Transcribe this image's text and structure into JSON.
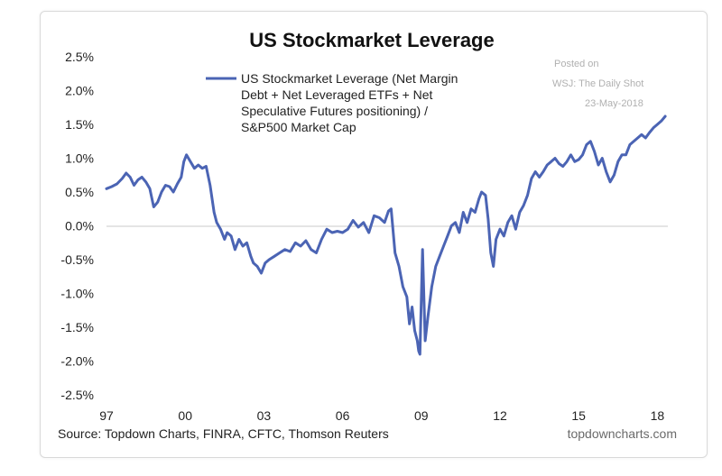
{
  "chart_data": {
    "type": "line",
    "title": "US Stockmarket Leverage",
    "xlabel": "",
    "ylabel": "",
    "x_tick_labels": [
      "97",
      "00",
      "03",
      "06",
      "09",
      "12",
      "15",
      "18"
    ],
    "y_tick_labels": [
      "2.5%",
      "2.0%",
      "1.5%",
      "1.0%",
      "0.5%",
      "0.0%",
      "-0.5%",
      "-1.0%",
      "-1.5%",
      "-2.0%",
      "-2.5%"
    ],
    "xlim": [
      1997.0,
      2018.4
    ],
    "ylim": [
      -2.5,
      2.5
    ],
    "grid": false,
    "legend_position": "top-center",
    "legend_lines": [
      "US Stockmarket Leverage (Net Margin",
      "Debt + Net Leveraged ETFs + Net",
      "Speculative Futures positioning) /",
      "S&P500 Market Cap"
    ],
    "series": [
      {
        "name": "US Stockmarket Leverage (Net Margin Debt + Net Leveraged ETFs + Net Speculative Futures positioning) / S&P500 Market Cap",
        "color": "#4b64b4",
        "x": [
          1997.0,
          1997.2,
          1997.4,
          1997.6,
          1997.75,
          1997.9,
          1998.05,
          1998.2,
          1998.35,
          1998.5,
          1998.65,
          1998.8,
          1998.95,
          1999.1,
          1999.25,
          1999.4,
          1999.55,
          1999.7,
          1999.85,
          1999.95,
          2000.05,
          2000.2,
          2000.35,
          2000.5,
          2000.65,
          2000.8,
          2000.95,
          2001.1,
          2001.2,
          2001.35,
          2001.5,
          2001.6,
          2001.75,
          2001.9,
          2002.05,
          2002.2,
          2002.35,
          2002.5,
          2002.6,
          2002.75,
          2002.9,
          2003.05,
          2003.2,
          2003.4,
          2003.6,
          2003.8,
          2004.0,
          2004.2,
          2004.4,
          2004.6,
          2004.8,
          2005.0,
          2005.2,
          2005.4,
          2005.6,
          2005.8,
          2006.0,
          2006.2,
          2006.4,
          2006.6,
          2006.8,
          2007.0,
          2007.2,
          2007.4,
          2007.6,
          2007.75,
          2007.85,
          2008.0,
          2008.15,
          2008.3,
          2008.45,
          2008.55,
          2008.65,
          2008.75,
          2008.85,
          2008.9,
          2008.95,
          2009.05,
          2009.15,
          2009.25,
          2009.4,
          2009.55,
          2009.7,
          2009.85,
          2010.0,
          2010.15,
          2010.3,
          2010.45,
          2010.6,
          2010.75,
          2010.9,
          2011.05,
          2011.2,
          2011.3,
          2011.45,
          2011.55,
          2011.65,
          2011.75,
          2011.85,
          2012.0,
          2012.15,
          2012.3,
          2012.45,
          2012.6,
          2012.75,
          2012.9,
          2013.05,
          2013.2,
          2013.35,
          2013.5,
          2013.65,
          2013.8,
          2013.95,
          2014.1,
          2014.25,
          2014.4,
          2014.55,
          2014.7,
          2014.85,
          2015.0,
          2015.15,
          2015.3,
          2015.45,
          2015.6,
          2015.75,
          2015.9,
          2016.05,
          2016.2,
          2016.35,
          2016.5,
          2016.65,
          2016.8,
          2016.95,
          2017.1,
          2017.25,
          2017.4,
          2017.55,
          2017.7,
          2017.85,
          2018.0,
          2018.15,
          2018.3
        ],
        "values": [
          0.55,
          0.58,
          0.62,
          0.7,
          0.78,
          0.72,
          0.6,
          0.68,
          0.72,
          0.65,
          0.55,
          0.28,
          0.35,
          0.5,
          0.6,
          0.58,
          0.5,
          0.62,
          0.72,
          0.95,
          1.05,
          0.95,
          0.85,
          0.9,
          0.85,
          0.88,
          0.6,
          0.2,
          0.05,
          -0.05,
          -0.2,
          -0.1,
          -0.15,
          -0.35,
          -0.2,
          -0.3,
          -0.25,
          -0.45,
          -0.55,
          -0.6,
          -0.7,
          -0.55,
          -0.5,
          -0.45,
          -0.4,
          -0.35,
          -0.38,
          -0.25,
          -0.3,
          -0.22,
          -0.35,
          -0.4,
          -0.2,
          -0.05,
          -0.1,
          -0.08,
          -0.1,
          -0.05,
          0.08,
          -0.02,
          0.05,
          -0.1,
          0.15,
          0.12,
          0.05,
          0.22,
          0.25,
          -0.4,
          -0.6,
          -0.9,
          -1.05,
          -1.45,
          -1.2,
          -1.55,
          -1.7,
          -1.85,
          -1.9,
          -0.35,
          -1.7,
          -1.35,
          -0.9,
          -0.6,
          -0.45,
          -0.3,
          -0.15,
          0.0,
          0.05,
          -0.1,
          0.2,
          0.05,
          0.25,
          0.2,
          0.4,
          0.5,
          0.45,
          0.1,
          -0.4,
          -0.6,
          -0.2,
          -0.05,
          -0.15,
          0.05,
          0.15,
          -0.05,
          0.2,
          0.3,
          0.45,
          0.7,
          0.8,
          0.72,
          0.8,
          0.9,
          0.95,
          1.0,
          0.92,
          0.88,
          0.95,
          1.05,
          0.95,
          0.98,
          1.05,
          1.2,
          1.25,
          1.1,
          0.9,
          1.0,
          0.8,
          0.65,
          0.75,
          0.95,
          1.05,
          1.05,
          1.2,
          1.25,
          1.3,
          1.35,
          1.3,
          1.38,
          1.45,
          1.5,
          1.55,
          1.62
        ]
      }
    ],
    "annotations": [
      "Posted on",
      "WSJ: The Daily Shot",
      "23-May-2018"
    ],
    "source": "Source: Topdown Charts, FINRA, CFTC, Thomson Reuters",
    "brand": "topdowncharts.com"
  }
}
